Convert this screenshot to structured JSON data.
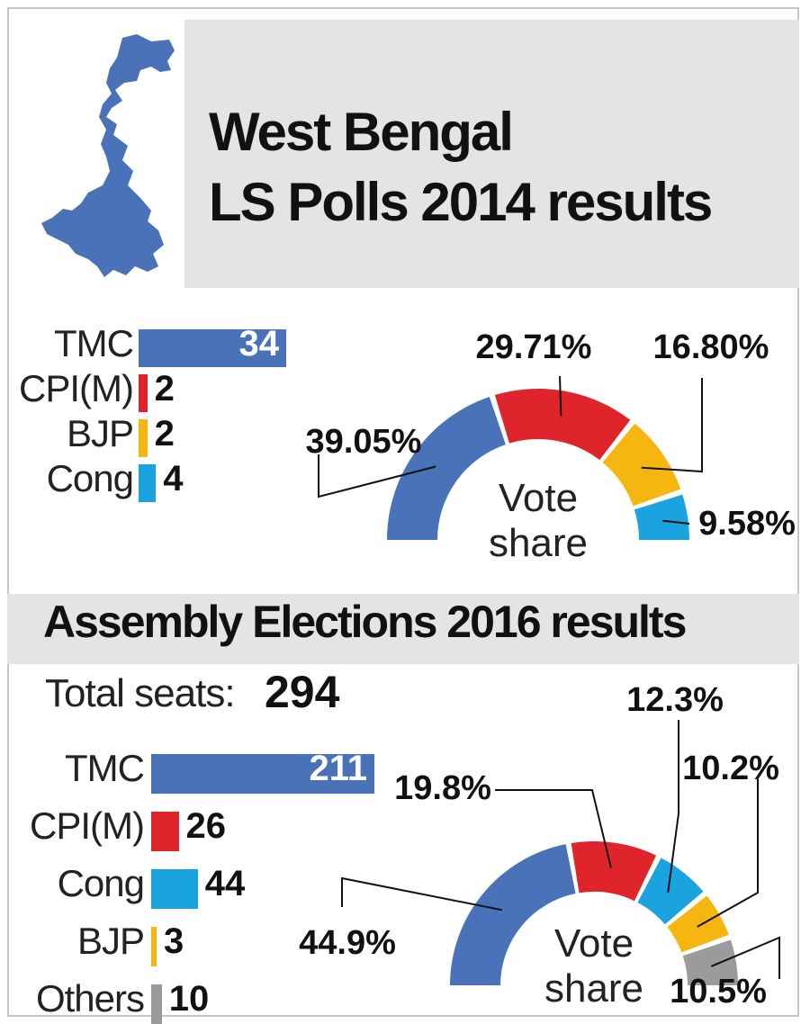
{
  "header": {
    "title_line1": "West Bengal",
    "title_line2": "LS Polls 2014 results"
  },
  "assembly_header": {
    "title": "Assembly Elections 2016 results",
    "total_seats_label": "Total seats:",
    "total_seats_value": "294"
  },
  "colors": {
    "TMC": "#4a72b8",
    "CPI(M)": "#e0242b",
    "BJP": "#f5b70f",
    "Cong": "#1aa3df",
    "Others": "#9b9b9b",
    "map": "#4a72b8"
  },
  "chart_data": [
    {
      "type": "bar",
      "orientation": "horizontal",
      "categories": [
        "TMC",
        "CPI(M)",
        "BJP",
        "Cong"
      ],
      "values": [
        34,
        2,
        2,
        4
      ],
      "value_labels": [
        "34",
        "2",
        "2",
        "4"
      ]
    },
    {
      "type": "pie",
      "variant": "semicircle-donut",
      "center_label_line1": "Vote",
      "center_label_line2": "share",
      "categories": [
        "TMC",
        "CPI(M)",
        "BJP",
        "Cong"
      ],
      "values": [
        39.05,
        29.71,
        16.8,
        9.58
      ],
      "labels": [
        "39.05%",
        "29.71%",
        "16.80%",
        "9.58%"
      ]
    },
    {
      "type": "bar",
      "orientation": "horizontal",
      "categories": [
        "TMC",
        "CPI(M)",
        "Cong",
        "BJP",
        "Others"
      ],
      "values": [
        211,
        26,
        44,
        3,
        10
      ],
      "value_labels": [
        "211",
        "26",
        "44",
        "3",
        "10"
      ]
    },
    {
      "type": "pie",
      "variant": "semicircle-donut",
      "center_label_line1": "Vote",
      "center_label_line2": "share",
      "categories": [
        "TMC",
        "CPI(M)",
        "Cong",
        "BJP",
        "Others"
      ],
      "values": [
        44.9,
        19.8,
        12.3,
        10.2,
        10.5
      ],
      "labels": [
        "44.9%",
        "19.8%",
        "12.3%",
        "10.2%",
        "10.5%"
      ]
    }
  ]
}
